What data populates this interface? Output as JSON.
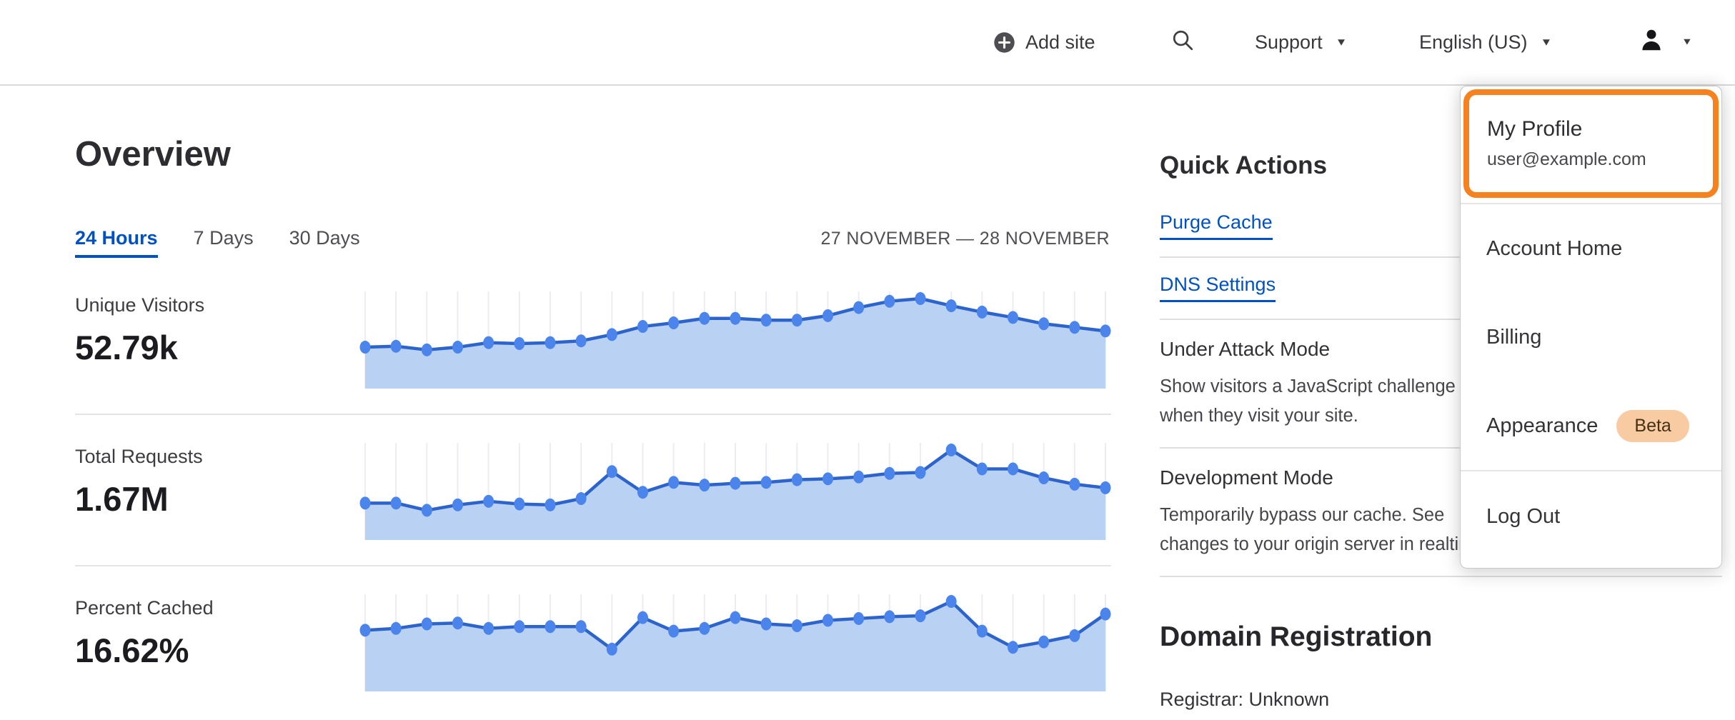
{
  "header": {
    "add_site_label": "Add site",
    "support_label": "Support",
    "language_label": "English (US)"
  },
  "dropdown": {
    "profile_label": "My Profile",
    "profile_email": "user@example.com",
    "items": [
      "Account Home",
      "Billing",
      "Appearance",
      "Log Out"
    ],
    "beta_badge": "Beta"
  },
  "overview": {
    "title": "Overview",
    "tabs": [
      {
        "label": "24 Hours",
        "active": true
      },
      {
        "label": "7 Days",
        "active": false
      },
      {
        "label": "30 Days",
        "active": false
      }
    ],
    "date_range": "27 NOVEMBER — 28 NOVEMBER",
    "stats": [
      {
        "label": "Unique Visitors",
        "value": "52.79k"
      },
      {
        "label": "Total Requests",
        "value": "1.67M"
      },
      {
        "label": "Percent Cached",
        "value": "16.62%"
      }
    ]
  },
  "quick_actions": {
    "title": "Quick Actions",
    "links": [
      "Purge Cache",
      "DNS Settings"
    ],
    "toggles": [
      {
        "title": "Under Attack Mode",
        "desc_lines": [
          "Show visitors a JavaScript challenge",
          "when they visit your site."
        ]
      },
      {
        "title": "Development Mode",
        "desc_lines": [
          "Temporarily bypass our cache. See",
          "changes to your origin server in realtime."
        ]
      }
    ]
  },
  "domain_registration": {
    "title": "Domain Registration",
    "registrar": "Registrar: Unknown"
  },
  "chart_data": [
    {
      "type": "area",
      "title": "Unique Visitors",
      "total": "52.79k",
      "x_range": "27 NOVEMBER — 28 NOVEMBER (24 hours, hourly points)",
      "normalization": "values relative to visible peak (0-1)",
      "values": [
        0.46,
        0.47,
        0.43,
        0.46,
        0.51,
        0.5,
        0.51,
        0.53,
        0.6,
        0.69,
        0.73,
        0.78,
        0.78,
        0.76,
        0.76,
        0.81,
        0.9,
        0.97,
        1.0,
        0.92,
        0.85,
        0.79,
        0.72,
        0.68,
        0.64
      ]
    },
    {
      "type": "area",
      "title": "Total Requests",
      "total": "1.67M",
      "x_range": "27 NOVEMBER — 28 NOVEMBER (24 hours, hourly points)",
      "normalization": "values relative to visible peak (0-1)",
      "values": [
        0.41,
        0.41,
        0.33,
        0.39,
        0.43,
        0.4,
        0.39,
        0.46,
        0.76,
        0.53,
        0.64,
        0.61,
        0.63,
        0.64,
        0.67,
        0.68,
        0.7,
        0.74,
        0.75,
        1.0,
        0.79,
        0.79,
        0.69,
        0.62,
        0.58
      ]
    },
    {
      "type": "area",
      "title": "Percent Cached",
      "total": "16.62%",
      "x_range": "27 NOVEMBER — 28 NOVEMBER (24 hours, hourly points)",
      "normalization": "values relative to visible peak (0-1)",
      "values": [
        0.68,
        0.7,
        0.75,
        0.76,
        0.7,
        0.72,
        0.72,
        0.72,
        0.47,
        0.82,
        0.67,
        0.7,
        0.82,
        0.75,
        0.73,
        0.79,
        0.81,
        0.83,
        0.84,
        1.0,
        0.67,
        0.49,
        0.55,
        0.62,
        0.86
      ]
    }
  ],
  "colors": {
    "accent_orange": "#F6821F",
    "link_blue": "#0051C3",
    "chart_line": "#2C64CC",
    "chart_fill": "#B9D1F3",
    "chart_dot": "#4B85EC",
    "grid_line": "#ECEDF3",
    "beta_bg": "#F8CBA3",
    "beta_text": "#453016"
  }
}
